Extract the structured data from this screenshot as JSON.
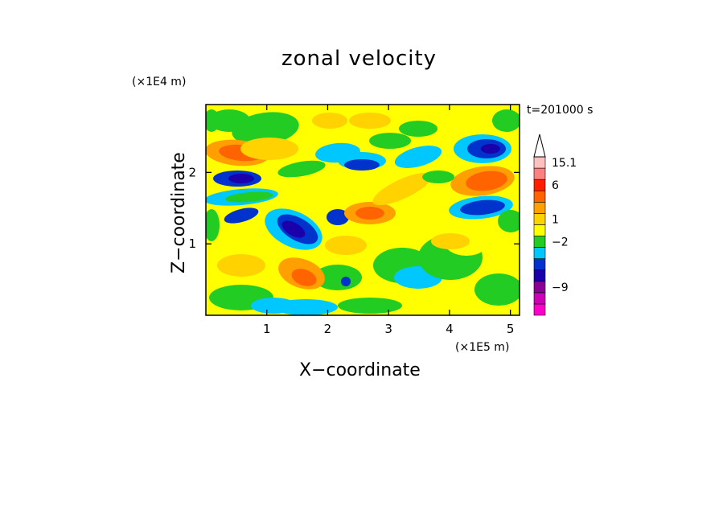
{
  "chart_data": {
    "type": "heatmap",
    "title": "zonal velocity",
    "xlabel": "X−coordinate",
    "ylabel": "Z−coordinate",
    "x_unit": "(×1E5 m)",
    "y_unit": "(×1E4 m)",
    "annotation": "t=201000 s",
    "x_ticks": [
      1,
      2,
      3,
      4,
      5
    ],
    "y_ticks": [
      1,
      2
    ],
    "xlim": [
      0,
      5.15
    ],
    "ylim": [
      0,
      2.95
    ],
    "colorbar": {
      "levels": [
        {
          "color": "#ff00cc"
        },
        {
          "color": "#cc00b4"
        },
        {
          "color": "#8a0096"
        },
        {
          "color": "#1a00aa"
        },
        {
          "color": "#0033cc"
        },
        {
          "color": "#00c8ff"
        },
        {
          "color": "#22cc22"
        },
        {
          "color": "#ffff00"
        },
        {
          "color": "#ffd200"
        },
        {
          "color": "#ffa000"
        },
        {
          "color": "#ff6400"
        },
        {
          "color": "#ff1e00"
        },
        {
          "color": "#ff8080"
        },
        {
          "color": "#ffc0c0"
        }
      ],
      "labels": [
        {
          "text": "15.1",
          "level": 13
        },
        {
          "text": "6",
          "level": 11
        },
        {
          "text": "1",
          "level": 8
        },
        {
          "text": "−2",
          "level": 6
        },
        {
          "text": "−9",
          "level": 2
        }
      ]
    }
  }
}
